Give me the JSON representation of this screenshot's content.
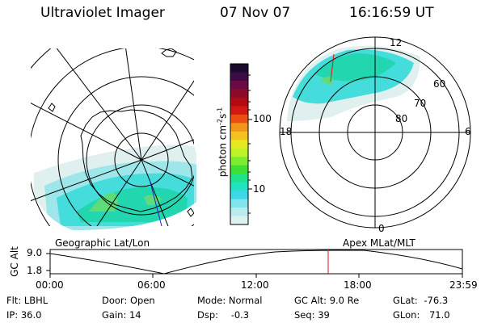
{
  "header": {
    "title": "Ultraviolet Imager",
    "date": "07 Nov 07",
    "time": "16:16:59 UT"
  },
  "colorbar": {
    "label": "photon cm",
    "label_sup1": "-2",
    "label_mid": "s",
    "label_sup2": "-1",
    "ticks": [
      "100",
      "10"
    ],
    "colors_top_to_bottom": [
      "#1a0a2e",
      "#3a0b45",
      "#6a0a45",
      "#8e0a2a",
      "#b20a12",
      "#d21812",
      "#ea5014",
      "#f2941a",
      "#f2c21e",
      "#e6ea20",
      "#bef226",
      "#7eec2e",
      "#3ede34",
      "#20e28c",
      "#22e2c4",
      "#3cd8e6",
      "#82e4ec",
      "#b8ecee",
      "#dcf0f0"
    ]
  },
  "left_panel": {
    "label": "Geographic Lat/Lon"
  },
  "right_panel": {
    "label": "Apex  MLat/MLT",
    "mlt_labels": [
      "12",
      "18",
      "6",
      "0"
    ],
    "mlat_labels": [
      "60",
      "70",
      "80"
    ]
  },
  "altitude_plot": {
    "ylabel": "GC Alt",
    "yticks": [
      "9.0",
      "1.8"
    ],
    "xticks": [
      "00:00",
      "06:00",
      "12:00",
      "18:00",
      "23:59"
    ],
    "marker_color": "#e81010"
  },
  "info": {
    "flt_label": "Flt:",
    "flt_value": "LBHL",
    "ip_label": "IP:",
    "ip_value": "36.0",
    "door_label": "Door:",
    "door_value": "Open",
    "gain_label": "Gain:",
    "gain_value": "14",
    "mode_label": "Mode:",
    "mode_value": "Normal",
    "dsp_label": "Dsp:",
    "dsp_value": "-0.3",
    "gcalt_label": "GC Alt:",
    "gcalt_value": "9.0 Re",
    "seq_label": "Seq:",
    "seq_value": "39",
    "glat_label": "GLat:",
    "glat_value": "-76.3",
    "glon_label": "GLon:",
    "glon_value": "71.0"
  }
}
